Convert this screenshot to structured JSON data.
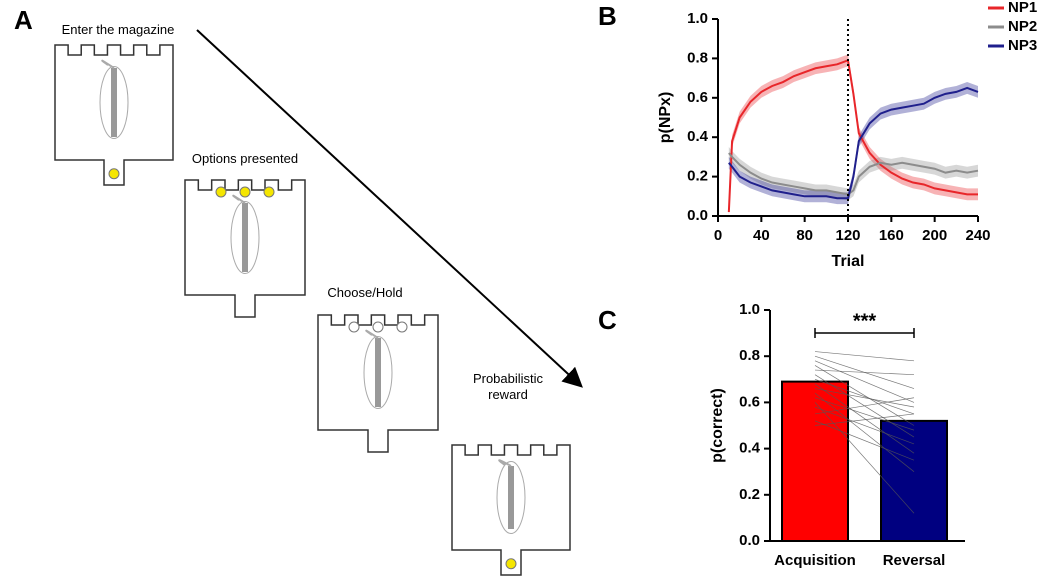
{
  "panel_labels": [
    "A",
    "B",
    "C"
  ],
  "diagram": {
    "steps": [
      "Enter the magazine",
      "Options presented",
      "Choose/Hold",
      "Probabilistic reward"
    ]
  },
  "chart_data": [
    {
      "type": "line",
      "x_label": "Trial",
      "y_label": "p(NPx)",
      "x": [
        10,
        13,
        20,
        30,
        40,
        50,
        60,
        70,
        80,
        90,
        100,
        110,
        120,
        125,
        130,
        140,
        150,
        160,
        170,
        180,
        190,
        200,
        210,
        220,
        230,
        240
      ],
      "series": [
        {
          "name": "NP1",
          "color": "#e8262a",
          "values": [
            0.02,
            0.38,
            0.5,
            0.58,
            0.63,
            0.66,
            0.68,
            0.71,
            0.73,
            0.75,
            0.76,
            0.77,
            0.79,
            0.62,
            0.42,
            0.32,
            0.26,
            0.22,
            0.19,
            0.17,
            0.16,
            0.14,
            0.13,
            0.12,
            0.11,
            0.11
          ],
          "errors": [
            0.02,
            0.03,
            0.03,
            0.03,
            0.03,
            0.03,
            0.03,
            0.03,
            0.03,
            0.03,
            0.03,
            0.03,
            0.03,
            0.03,
            0.03,
            0.03,
            0.03,
            0.03,
            0.03,
            0.03,
            0.03,
            0.03,
            0.03,
            0.03,
            0.03,
            0.03
          ]
        },
        {
          "name": "NP2",
          "color": "#8c8c8c",
          "values": [
            0.32,
            0.3,
            0.26,
            0.22,
            0.19,
            0.17,
            0.16,
            0.15,
            0.14,
            0.13,
            0.13,
            0.12,
            0.11,
            0.13,
            0.2,
            0.25,
            0.27,
            0.26,
            0.27,
            0.26,
            0.25,
            0.24,
            0.22,
            0.23,
            0.22,
            0.23
          ],
          "errors": [
            0.03,
            0.03,
            0.03,
            0.03,
            0.03,
            0.03,
            0.03,
            0.03,
            0.03,
            0.03,
            0.03,
            0.03,
            0.03,
            0.03,
            0.03,
            0.03,
            0.03,
            0.03,
            0.03,
            0.03,
            0.03,
            0.03,
            0.03,
            0.03,
            0.03,
            0.03
          ]
        },
        {
          "name": "NP3",
          "color": "#1f1f8c",
          "values": [
            0.27,
            0.25,
            0.2,
            0.17,
            0.15,
            0.13,
            0.12,
            0.11,
            0.1,
            0.1,
            0.1,
            0.09,
            0.09,
            0.2,
            0.38,
            0.47,
            0.52,
            0.54,
            0.55,
            0.56,
            0.57,
            0.6,
            0.62,
            0.63,
            0.65,
            0.63
          ],
          "errors": [
            0.03,
            0.03,
            0.03,
            0.03,
            0.03,
            0.03,
            0.03,
            0.03,
            0.03,
            0.03,
            0.03,
            0.03,
            0.03,
            0.03,
            0.03,
            0.03,
            0.03,
            0.03,
            0.03,
            0.03,
            0.03,
            0.03,
            0.03,
            0.03,
            0.03,
            0.03
          ]
        }
      ],
      "vline": 120,
      "xlim": [
        0,
        240
      ],
      "xticks": [
        0,
        40,
        80,
        120,
        160,
        200,
        240
      ],
      "ylim": [
        0,
        1
      ],
      "yticks": [
        {
          "value": 0,
          "label": "0.0"
        },
        0.2,
        0.4,
        0.6,
        0.8,
        {
          "value": 1,
          "label": "1.0"
        }
      ],
      "legend": "right"
    },
    {
      "type": "bar",
      "y_label": "p(correct)",
      "categories": [
        "Acquisition",
        "Reversal"
      ],
      "values": [
        0.69,
        0.52
      ],
      "colors": [
        "#ff0000",
        "#000080"
      ],
      "pairs": [
        [
          0.82,
          0.78
        ],
        [
          0.8,
          0.66
        ],
        [
          0.78,
          0.6
        ],
        [
          0.76,
          0.5
        ],
        [
          0.74,
          0.72
        ],
        [
          0.72,
          0.45
        ],
        [
          0.7,
          0.55
        ],
        [
          0.68,
          0.38
        ],
        [
          0.66,
          0.58
        ],
        [
          0.64,
          0.3
        ],
        [
          0.62,
          0.48
        ],
        [
          0.6,
          0.12
        ],
        [
          0.58,
          0.42
        ],
        [
          0.55,
          0.62
        ],
        [
          0.52,
          0.35
        ],
        [
          0.5,
          0.55
        ]
      ],
      "annotation": "***",
      "ylim": [
        0,
        1
      ],
      "yticks": [
        {
          "value": 0,
          "label": "0.0"
        },
        0.2,
        0.4,
        0.6,
        0.8,
        {
          "value": 1,
          "label": "1.0"
        }
      ]
    }
  ]
}
